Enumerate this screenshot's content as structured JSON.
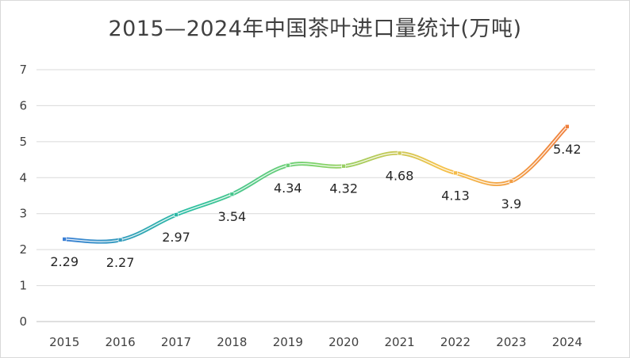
{
  "chart_data": {
    "type": "line",
    "title": "2015—2024年中国茶叶进口量统计(万吨)",
    "categories": [
      "2015",
      "2016",
      "2017",
      "2018",
      "2019",
      "2020",
      "2021",
      "2022",
      "2023",
      "2024"
    ],
    "series": [
      {
        "values": [
          2.29,
          2.27,
          2.97,
          3.54,
          4.34,
          4.32,
          4.68,
          4.13,
          3.9,
          5.42
        ]
      }
    ],
    "data_labels": [
      "2.29",
      "2.27",
      "2.97",
      "3.54",
      "4.34",
      "4.32",
      "4.68",
      "4.13",
      "3.9",
      "5.42"
    ],
    "yticks": [
      "0",
      "1",
      "2",
      "3",
      "4",
      "5",
      "6",
      "7"
    ],
    "ylim": [
      0,
      7
    ],
    "grid": true,
    "legend": "none",
    "line_gradient": [
      "#3a7fd5",
      "#2bbfa0",
      "#7ed36a",
      "#f5c24a",
      "#ef7f3c"
    ]
  }
}
